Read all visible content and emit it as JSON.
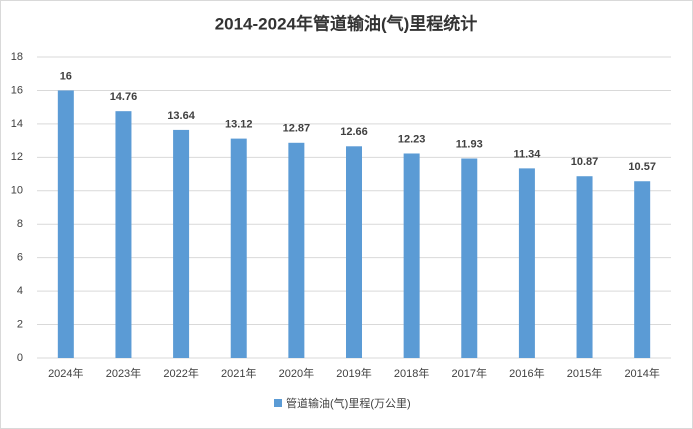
{
  "chart_data": {
    "type": "bar",
    "title": "2014-2024年管道输油(气)里程统计",
    "categories": [
      "2024年",
      "2023年",
      "2022年",
      "2021年",
      "2020年",
      "2019年",
      "2018年",
      "2017年",
      "2016年",
      "2015年",
      "2014年"
    ],
    "series": [
      {
        "name": "管道输油(气)里程(万公里)",
        "color": "#5b9bd5",
        "values": [
          16,
          14.76,
          13.64,
          13.12,
          12.87,
          12.66,
          12.23,
          11.93,
          11.34,
          10.87,
          10.57
        ]
      }
    ],
    "ylim": [
      0,
      18
    ],
    "yticks": [
      0,
      2,
      4,
      6,
      8,
      10,
      12,
      14,
      16,
      18
    ],
    "grid": true,
    "legend": "bottom"
  }
}
